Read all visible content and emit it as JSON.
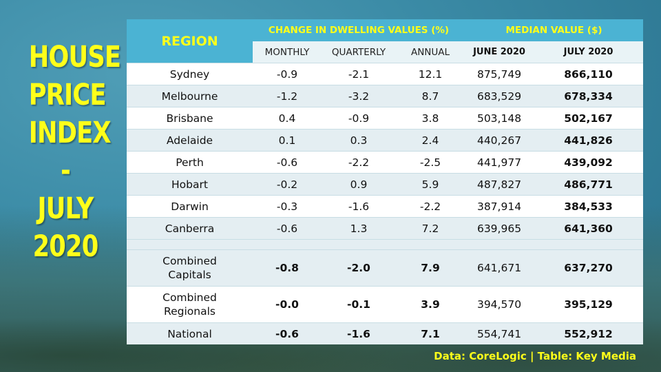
{
  "title_lines": [
    "HOUSE",
    "PRICE",
    "INDEX",
    "-",
    "JULY",
    "2020"
  ],
  "table": {
    "header_region": "REGION",
    "header_change": "CHANGE IN DWELLING VALUES (%)",
    "header_median": "MEDIAN VALUE ($)",
    "sub_monthly": "MONTHLY",
    "sub_quarterly": "QUARTERLY",
    "sub_annual": "ANNUAL",
    "sub_june": "JUNE 2020",
    "sub_july": "JULY 2020",
    "rows": [
      {
        "region": "Sydney",
        "monthly": "-0.9",
        "quarterly": "-2.1",
        "annual": "12.1",
        "june": "875,749",
        "july": "866,110"
      },
      {
        "region": "Melbourne",
        "monthly": "-1.2",
        "quarterly": "-3.2",
        "annual": "8.7",
        "june": "683,529",
        "july": "678,334"
      },
      {
        "region": "Brisbane",
        "monthly": "0.4",
        "quarterly": "-0.9",
        "annual": "3.8",
        "june": "503,148",
        "july": "502,167"
      },
      {
        "region": "Adelaide",
        "monthly": "0.1",
        "quarterly": "0.3",
        "annual": "2.4",
        "june": "440,267",
        "july": "441,826"
      },
      {
        "region": "Perth",
        "monthly": "-0.6",
        "quarterly": "-2.2",
        "annual": "-2.5",
        "june": "441,977",
        "july": "439,092"
      },
      {
        "region": "Hobart",
        "monthly": "-0.2",
        "quarterly": "0.9",
        "annual": "5.9",
        "june": "487,827",
        "july": "486,771"
      },
      {
        "region": "Darwin",
        "monthly": "-0.3",
        "quarterly": "-1.6",
        "annual": "-2.2",
        "june": "387,914",
        "july": "384,533"
      },
      {
        "region": "Canberra",
        "monthly": "-0.6",
        "quarterly": "1.3",
        "annual": "7.2",
        "june": "639,965",
        "july": "641,360"
      }
    ],
    "summary_rows": [
      {
        "region_line1": "Combined",
        "region_line2": "Capitals",
        "monthly": "-0.8",
        "quarterly": "-2.0",
        "annual": "7.9",
        "june": "641,671",
        "july": "637,270"
      },
      {
        "region_line1": "Combined",
        "region_line2": "Regionals",
        "monthly": "-0.0",
        "quarterly": "-0.1",
        "annual": "3.9",
        "june": "394,570",
        "july": "395,129"
      },
      {
        "region_line1": "National",
        "region_line2": "",
        "monthly": "-0.6",
        "quarterly": "-1.6",
        "annual": "7.1",
        "june": "554,741",
        "july": "552,912"
      }
    ]
  },
  "source_text": "Data: CoreLogic | Table: Key Media",
  "colors": {
    "header_bg": "#4bb3d3",
    "accent_yellow": "#ffff1a",
    "row_alt": "#e4eef2",
    "background": "#3b8ba6"
  }
}
